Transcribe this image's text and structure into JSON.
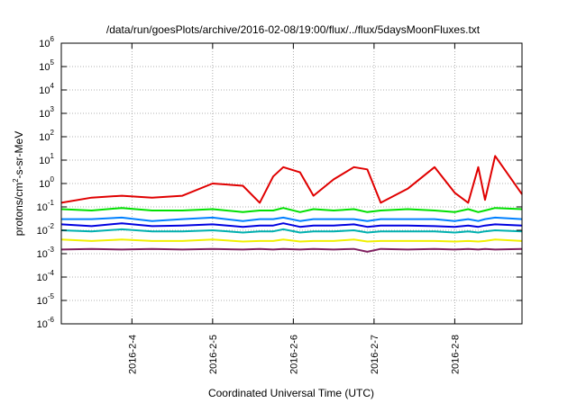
{
  "chart_data": {
    "type": "line",
    "title": "/data/run/goesPlots/archive/2016-02-08/19:00/flux/../flux/5daysMoonFluxes.txt",
    "xlabel": "Coordinated Universal Time (UTC)",
    "ylabel": "protons/cm2-s-sr-MeV",
    "ylabel_parts": {
      "base": "protons/cm",
      "sup": "2",
      "rest": "-s-sr-MeV"
    },
    "yscale": "log",
    "ylim": [
      1e-06,
      1000000.0
    ],
    "yticks": [
      {
        "base": "10",
        "exp": "-6",
        "value": 1e-06
      },
      {
        "base": "10",
        "exp": "-5",
        "value": 1e-05
      },
      {
        "base": "10",
        "exp": "-4",
        "value": 0.0001
      },
      {
        "base": "10",
        "exp": "-3",
        "value": 0.001
      },
      {
        "base": "10",
        "exp": "-2",
        "value": 0.01
      },
      {
        "base": "10",
        "exp": "-1",
        "value": 0.1
      },
      {
        "base": "10",
        "exp": "0",
        "value": 1
      },
      {
        "base": "10",
        "exp": "1",
        "value": 10
      },
      {
        "base": "10",
        "exp": "2",
        "value": 100
      },
      {
        "base": "10",
        "exp": "3",
        "value": 1000
      },
      {
        "base": "10",
        "exp": "4",
        "value": 10000
      },
      {
        "base": "10",
        "exp": "5",
        "value": 100000
      },
      {
        "base": "10",
        "exp": "6",
        "value": 1000000
      }
    ],
    "xlim": [
      "2016-02-03T03:00",
      "2016-02-08T20:00"
    ],
    "xticks": [
      "2016-2-4",
      "2016-2-5",
      "2016-2-6",
      "2016-2-7",
      "2016-2-8"
    ],
    "grid": true,
    "x": [
      "2016-02-03T03:00",
      "2016-02-03T12:00",
      "2016-02-03T21:00",
      "2016-02-04T06:00",
      "2016-02-04T15:00",
      "2016-02-05T00:00",
      "2016-02-05T09:00",
      "2016-02-05T14:00",
      "2016-02-05T18:00",
      "2016-02-05T21:00",
      "2016-02-06T02:00",
      "2016-02-06T06:00",
      "2016-02-06T12:00",
      "2016-02-06T18:00",
      "2016-02-06T22:00",
      "2016-02-07T02:00",
      "2016-02-07T10:00",
      "2016-02-07T18:00",
      "2016-02-08T00:00",
      "2016-02-08T04:00",
      "2016-02-08T07:00",
      "2016-02-08T09:00",
      "2016-02-08T12:00",
      "2016-02-08T20:00"
    ],
    "series": [
      {
        "color": "#e00000",
        "values": [
          0.15,
          0.25,
          0.3,
          0.25,
          0.3,
          1.0,
          0.8,
          0.15,
          2.0,
          5.0,
          3.0,
          0.3,
          1.5,
          5.0,
          4.0,
          0.15,
          0.6,
          5.0,
          0.4,
          0.15,
          5.0,
          0.2,
          15.0,
          0.35
        ]
      },
      {
        "color": "#00e000",
        "values": [
          0.08,
          0.07,
          0.09,
          0.07,
          0.07,
          0.08,
          0.06,
          0.07,
          0.07,
          0.09,
          0.06,
          0.08,
          0.07,
          0.08,
          0.06,
          0.07,
          0.08,
          0.07,
          0.06,
          0.08,
          0.06,
          0.07,
          0.09,
          0.08
        ]
      },
      {
        "color": "#0080ff",
        "values": [
          0.03,
          0.03,
          0.035,
          0.025,
          0.03,
          0.035,
          0.025,
          0.03,
          0.03,
          0.035,
          0.025,
          0.03,
          0.03,
          0.03,
          0.025,
          0.03,
          0.03,
          0.03,
          0.025,
          0.03,
          0.025,
          0.03,
          0.035,
          0.03
        ]
      },
      {
        "color": "#0000e0",
        "values": [
          0.018,
          0.015,
          0.02,
          0.015,
          0.016,
          0.018,
          0.014,
          0.016,
          0.016,
          0.02,
          0.014,
          0.016,
          0.016,
          0.018,
          0.014,
          0.016,
          0.016,
          0.015,
          0.014,
          0.016,
          0.014,
          0.016,
          0.018,
          0.016
        ]
      },
      {
        "color": "#00b0b0",
        "values": [
          0.01,
          0.009,
          0.011,
          0.009,
          0.009,
          0.01,
          0.008,
          0.009,
          0.009,
          0.011,
          0.008,
          0.009,
          0.009,
          0.01,
          0.008,
          0.009,
          0.009,
          0.009,
          0.008,
          0.009,
          0.008,
          0.009,
          0.01,
          0.009
        ]
      },
      {
        "color": "#f0f000",
        "values": [
          0.004,
          0.0035,
          0.004,
          0.0035,
          0.0035,
          0.004,
          0.0033,
          0.0035,
          0.0035,
          0.004,
          0.0033,
          0.0035,
          0.0035,
          0.004,
          0.0033,
          0.0035,
          0.0035,
          0.0035,
          0.0033,
          0.0035,
          0.0033,
          0.0035,
          0.004,
          0.0035
        ]
      },
      {
        "color": "#802060",
        "values": [
          0.0015,
          0.0016,
          0.0015,
          0.0016,
          0.0015,
          0.0016,
          0.0015,
          0.0016,
          0.0015,
          0.0016,
          0.0015,
          0.0016,
          0.0015,
          0.0016,
          0.0012,
          0.0016,
          0.0015,
          0.0016,
          0.0015,
          0.0016,
          0.0015,
          0.0016,
          0.0015,
          0.0016
        ]
      }
    ]
  }
}
